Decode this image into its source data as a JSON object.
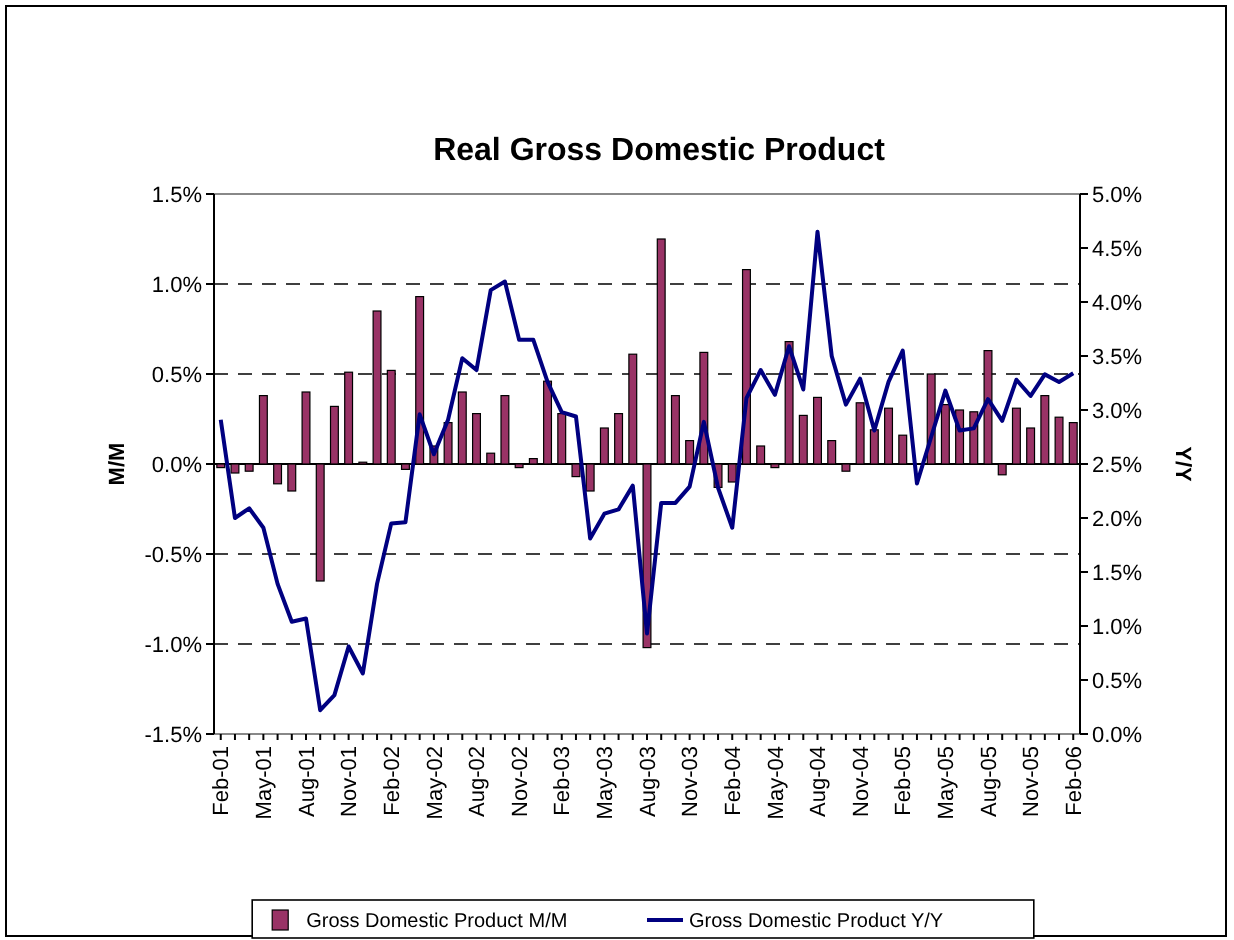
{
  "chart_data": {
    "type": "bar",
    "title": "Real Gross Domestic Product",
    "ylabel": "M/M",
    "y2label": "Y/Y",
    "categories": [
      "Feb-01",
      null,
      null,
      "May-01",
      null,
      null,
      "Aug-01",
      null,
      null,
      "Nov-01",
      null,
      null,
      "Feb-02",
      null,
      null,
      "May-02",
      null,
      null,
      "Aug-02",
      null,
      null,
      "Nov-02",
      null,
      null,
      "Feb-03",
      null,
      null,
      "May-03",
      null,
      null,
      "Aug-03",
      null,
      null,
      "Nov-03",
      null,
      null,
      "Feb-04",
      null,
      null,
      "May-04",
      null,
      null,
      "Aug-04",
      null,
      null,
      "Nov-04",
      null,
      null,
      "Feb-05",
      null,
      null,
      "May-05",
      null,
      null,
      "Aug-05",
      null,
      null,
      "Nov-05",
      null,
      null,
      "Feb-06"
    ],
    "series": [
      {
        "name": "Gross Domestic Product M/M",
        "color": "#993366",
        "values": [
          -0.02,
          -0.05,
          -0.04,
          0.38,
          -0.11,
          -0.15,
          0.4,
          -0.65,
          0.32,
          0.51,
          0.01,
          0.85,
          0.52,
          -0.03,
          0.93,
          0.1,
          0.23,
          0.4,
          0.28,
          0.06,
          0.38,
          -0.02,
          0.03,
          0.46,
          0.28,
          -0.07,
          -0.15,
          0.2,
          0.28,
          0.61,
          -1.02,
          1.25,
          0.38,
          0.13,
          0.62,
          -0.13,
          -0.1,
          1.08,
          0.1,
          -0.02,
          0.68,
          0.27,
          0.37,
          0.13,
          -0.04,
          0.34,
          0.19,
          0.31,
          0.16,
          0,
          0.5,
          0.33,
          0.3,
          0.29,
          0.63,
          -0.06,
          0.31,
          0.2,
          0.38,
          0.26,
          0.23
        ]
      },
      {
        "name": "Gross Domestic Product Y/Y",
        "type": "line",
        "axis": "y2",
        "color": "#000080",
        "values": [
          2.91,
          2.0,
          2.09,
          1.91,
          1.39,
          1.04,
          1.07,
          0.22,
          0.36,
          0.81,
          0.56,
          1.39,
          1.95,
          1.96,
          2.96,
          2.59,
          2.91,
          3.48,
          3.37,
          4.11,
          4.19,
          3.65,
          3.65,
          3.26,
          2.98,
          2.94,
          1.81,
          2.04,
          2.08,
          2.3,
          0.93,
          2.14,
          2.14,
          2.29,
          2.89,
          2.28,
          1.91,
          3.11,
          3.37,
          3.14,
          3.59,
          3.19,
          4.65,
          3.5,
          3.05,
          3.29,
          2.81,
          3.26,
          3.55,
          2.32,
          2.75,
          3.18,
          2.81,
          2.83,
          3.1,
          2.9,
          3.28,
          3.13,
          3.33,
          3.26,
          3.34
        ]
      }
    ],
    "ylim": [
      -1.5,
      1.5
    ],
    "yticks": [
      {
        "value": -1.5,
        "label": "-1.5%"
      },
      {
        "value": -1,
        "label": "-1.0%"
      },
      {
        "value": -0.5,
        "label": "-0.5%"
      },
      {
        "value": 0,
        "label": "0.0%"
      },
      {
        "value": 0.5,
        "label": "0.5%"
      },
      {
        "value": 1,
        "label": "1.0%"
      },
      {
        "value": 1.5,
        "label": "1.5%"
      }
    ],
    "y2lim": [
      0,
      5
    ],
    "y2ticks": [
      {
        "value": 0,
        "label": "0.0%"
      },
      {
        "value": 0.5,
        "label": "0.5%"
      },
      {
        "value": 1,
        "label": "1.0%"
      },
      {
        "value": 1.5,
        "label": "1.5%"
      },
      {
        "value": 2,
        "label": "2.0%"
      },
      {
        "value": 2.5,
        "label": "2.5%"
      },
      {
        "value": 3,
        "label": "3.0%"
      },
      {
        "value": 3.5,
        "label": "3.5%"
      },
      {
        "value": 4,
        "label": "4.0%"
      },
      {
        "value": 4.5,
        "label": "4.5%"
      },
      {
        "value": 5,
        "label": "5.0%"
      }
    ],
    "grid": "y",
    "legend": "bottom",
    "line_style": "solid",
    "marker": "none"
  }
}
